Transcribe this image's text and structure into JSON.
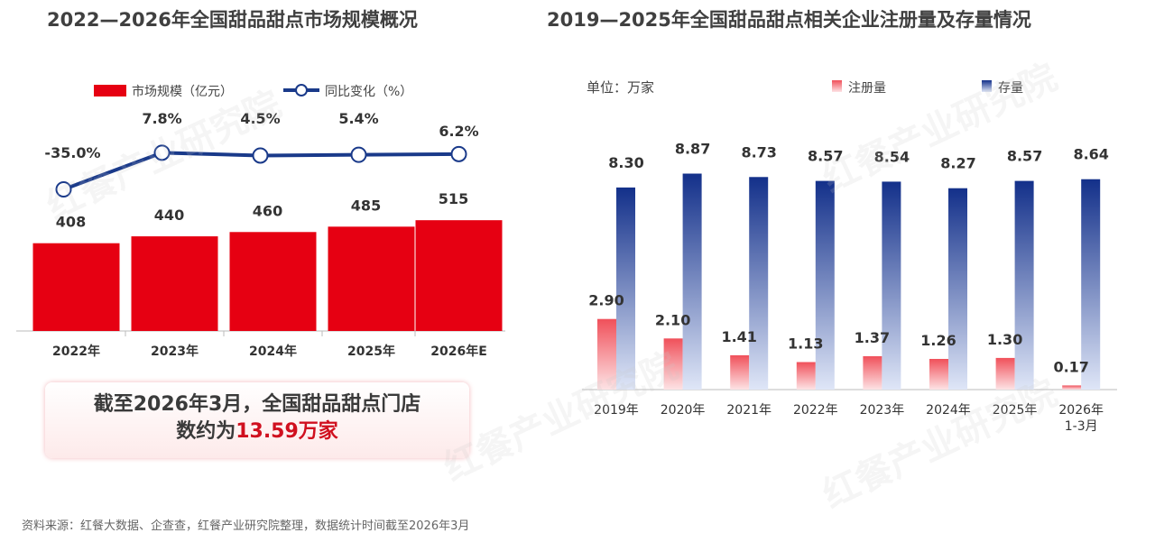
{
  "watermark": "红餐产业研究院",
  "chart_data": [
    {
      "type": "bar+line",
      "title": "2022—2026年全国甜品甜点市场规模概况",
      "categories": [
        "2022年",
        "2023年",
        "2024年",
        "2025年",
        "2026年E"
      ],
      "legend": "top",
      "series": [
        {
          "name": "市场规模（亿元）",
          "type": "bar",
          "color": "#e60012",
          "values": [
            408,
            440,
            460,
            485,
            515
          ],
          "labels": [
            "408",
            "440",
            "460",
            "485",
            "515"
          ]
        },
        {
          "name": "同比变化（%）",
          "type": "line",
          "color": "#1a3a8a",
          "values": [
            -35.0,
            7.8,
            4.5,
            5.4,
            6.2
          ],
          "labels": [
            "-35.0%",
            "7.8%",
            "4.5%",
            "5.4%",
            "6.2%"
          ]
        }
      ]
    },
    {
      "type": "bar",
      "title": "2019—2025年全国甜品甜点相关企业注册量及存量情况",
      "unit_label": "单位：万家",
      "categories": [
        "2019年",
        "2020年",
        "2021年",
        "2022年",
        "2023年",
        "2024年",
        "2025年",
        "2026年\n1-3月"
      ],
      "legend": "top",
      "series": [
        {
          "name": "注册量",
          "color": "#f0505a",
          "values": [
            2.9,
            2.1,
            1.41,
            1.13,
            1.37,
            1.26,
            1.3,
            0.17
          ],
          "labels": [
            "2.90",
            "2.10",
            "1.41",
            "1.13",
            "1.37",
            "1.26",
            "1.30",
            "0.17"
          ]
        },
        {
          "name": "存量",
          "color": "#1a3a8a",
          "values": [
            8.3,
            8.87,
            8.73,
            8.57,
            8.54,
            8.27,
            8.57,
            8.64
          ],
          "labels": [
            "8.30",
            "8.87",
            "8.73",
            "8.57",
            "8.54",
            "8.27",
            "8.57",
            "8.64"
          ]
        }
      ]
    }
  ],
  "callout": {
    "line1": "截至2026年3月，全国甜品甜点门店",
    "line2_prefix": "数约为",
    "line2_highlight": "13.59万家"
  },
  "source": "资料来源：红餐大数据、企查查，红餐产业研究院整理，数据统计时间截至2026年3月"
}
